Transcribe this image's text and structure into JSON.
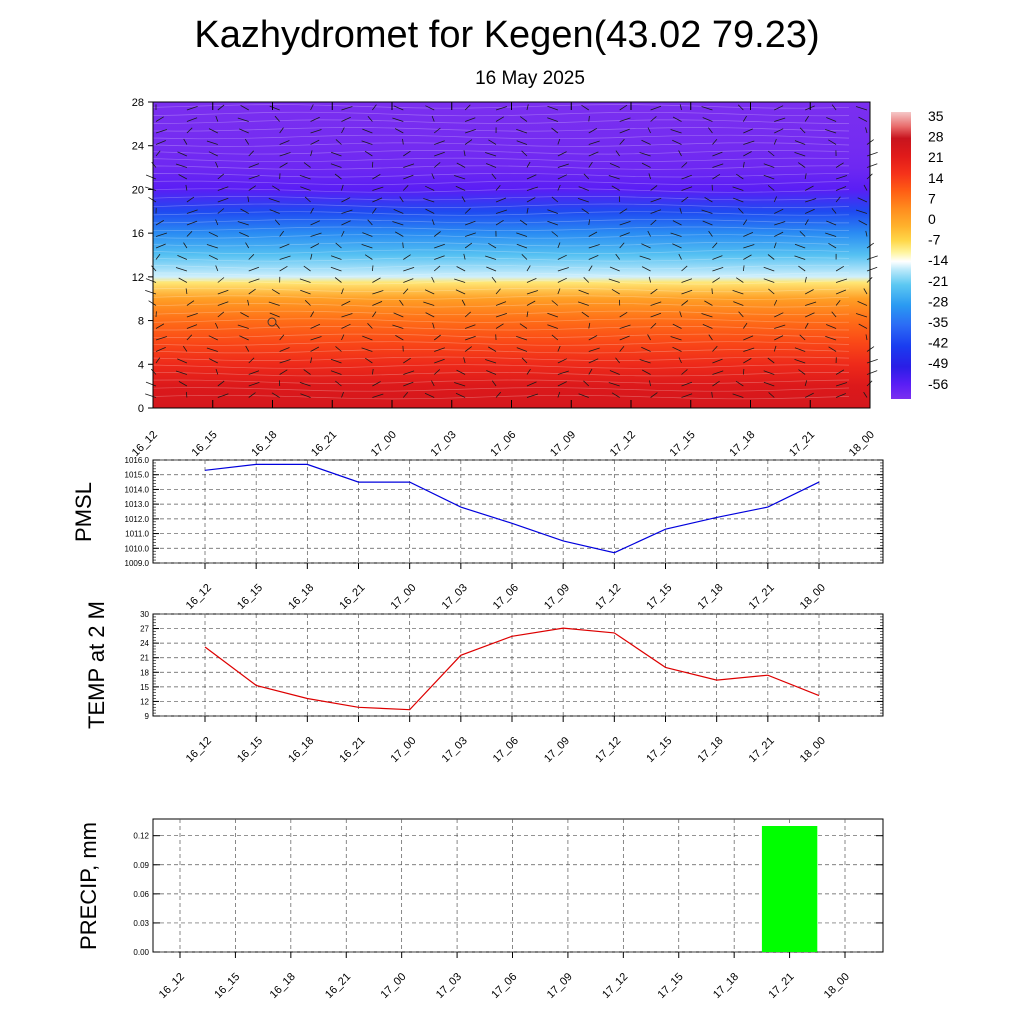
{
  "title": "Kazhydromet for Kegen(43.02 79.23)",
  "subtitle": "16 May 2025",
  "time_labels": [
    "16_12",
    "16_15",
    "16_18",
    "16_21",
    "17_00",
    "17_03",
    "17_06",
    "17_09",
    "17_12",
    "17_15",
    "17_18",
    "17_21",
    "18_00"
  ],
  "colors": {
    "pmsl_line": "#0000dd",
    "temp_line": "#dd0000",
    "precip_bar": "#00ff00"
  },
  "chart_data": [
    {
      "type": "heatmap",
      "name": "temperature-wind-cross-section",
      "y_ticks": [
        "0",
        "4",
        "8",
        "12",
        "16",
        "20",
        "24",
        "28"
      ],
      "ylim": [
        0,
        28
      ],
      "colorbar": {
        "labels": [
          "35",
          "28",
          "21",
          "14",
          "7",
          "0",
          "-7",
          "-14",
          "-21",
          "-28",
          "-35",
          "-42",
          "-49",
          "-56"
        ],
        "range": [
          -60,
          38
        ]
      },
      "temperature_profile": {
        "level": [
          0,
          2,
          4,
          6,
          8,
          10,
          11.5,
          12,
          14,
          16,
          18,
          20,
          22,
          24,
          28
        ],
        "value": [
          26,
          24,
          19,
          14,
          9,
          2,
          -8,
          -15,
          -22,
          -30,
          -40,
          -55,
          -58,
          -59,
          -60
        ]
      },
      "wind_barbs": true
    },
    {
      "type": "line",
      "name": "PMSL",
      "ylabel": "PMSL",
      "y_ticks": [
        "1016.0",
        "1015.0",
        "1014.0",
        "1013.0",
        "1012.0",
        "1011.0",
        "1010.0",
        "1009.0"
      ],
      "ylim": [
        1009,
        1016
      ],
      "values": [
        1015.3,
        1015.7,
        1015.7,
        1014.5,
        1014.5,
        1012.8,
        1011.7,
        1010.5,
        1009.7,
        1011.3,
        1012.1,
        1012.8,
        1014.5
      ]
    },
    {
      "type": "line",
      "name": "TEMP at 2 M",
      "ylabel": "TEMP at 2 M",
      "y_ticks": [
        "30",
        "27",
        "24",
        "21",
        "18",
        "15",
        "12",
        "9"
      ],
      "ylim": [
        9,
        30
      ],
      "values": [
        23.2,
        15.3,
        12.6,
        10.8,
        10.3,
        21.5,
        25.4,
        27.1,
        26.1,
        19.0,
        16.4,
        17.4,
        13.2
      ]
    },
    {
      "type": "bar",
      "name": "PRECIP, mm",
      "ylabel": "PRECIP, mm",
      "y_ticks": [
        "0.12",
        "0.09",
        "0.06",
        "0.03",
        "0.00"
      ],
      "ylim": [
        0,
        0.13
      ],
      "values": [
        0,
        0,
        0,
        0,
        0,
        0,
        0,
        0,
        0,
        0,
        0,
        0.13,
        0
      ]
    }
  ]
}
